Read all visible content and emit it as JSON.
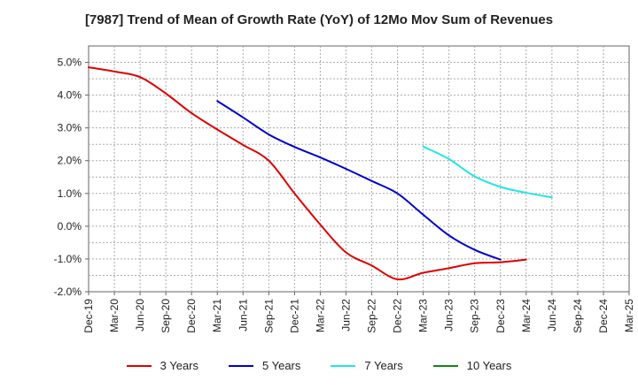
{
  "chart_data": {
    "type": "line",
    "title": "[7987]  Trend of Mean of Growth Rate (YoY) of 12Mo Mov Sum of Revenues",
    "xlabel": "",
    "ylabel": "",
    "ylim": [
      -2.0,
      5.5
    ],
    "y_ticks": [
      "-2.0%",
      "-1.0%",
      "0.0%",
      "1.0%",
      "2.0%",
      "3.0%",
      "4.0%",
      "5.0%"
    ],
    "y_tick_values": [
      -2,
      -1,
      0,
      1,
      2,
      3,
      4,
      5
    ],
    "x_ticks": [
      "Dec-19",
      "Mar-20",
      "Jun-20",
      "Sep-20",
      "Dec-20",
      "Mar-21",
      "Jun-21",
      "Sep-21",
      "Dec-21",
      "Mar-22",
      "Jun-22",
      "Sep-22",
      "Dec-22",
      "Mar-23",
      "Jun-23",
      "Sep-23",
      "Dec-23",
      "Mar-24",
      "Jun-24",
      "Sep-24",
      "Dec-24",
      "Mar-25"
    ],
    "grid": true,
    "legend_position": "bottom",
    "series": [
      {
        "name": "3 Years",
        "color": "#dd0000",
        "start_index": 0,
        "values": [
          4.85,
          4.72,
          4.55,
          4.05,
          3.45,
          2.95,
          2.48,
          2.0,
          1.0,
          0.05,
          -0.8,
          -1.2,
          -1.62,
          -1.42,
          -1.28,
          -1.13,
          -1.1,
          -1.02
        ]
      },
      {
        "name": "5 Years",
        "color": "#0000cc",
        "start_index": 5,
        "values": [
          3.82,
          3.32,
          2.8,
          2.42,
          2.1,
          1.75,
          1.38,
          1.0,
          0.35,
          -0.28,
          -0.72,
          -1.02
        ]
      },
      {
        "name": "7 Years",
        "color": "#22e5e5",
        "start_index": 13,
        "values": [
          2.43,
          2.05,
          1.52,
          1.2,
          1.02,
          0.88
        ]
      },
      {
        "name": "10 Years",
        "color": "#118811",
        "start_index": 0,
        "values": []
      }
    ]
  }
}
